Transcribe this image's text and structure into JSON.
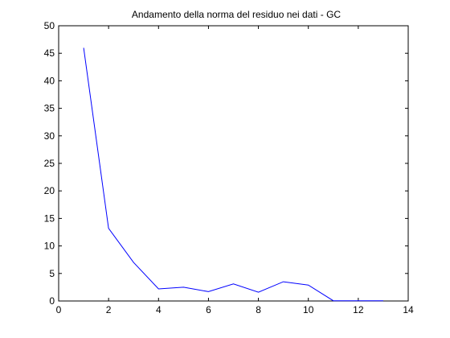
{
  "chart_data": {
    "type": "line",
    "title": "Andamento della norma del residuo nei dati - GC",
    "xlabel": "",
    "ylabel": "",
    "xlim": [
      0,
      14
    ],
    "ylim": [
      0,
      50
    ],
    "xticks": [
      0,
      2,
      4,
      6,
      8,
      10,
      12,
      14
    ],
    "yticks": [
      0,
      5,
      10,
      15,
      20,
      25,
      30,
      35,
      40,
      45,
      50
    ],
    "grid": false,
    "legend": "none",
    "series": [
      {
        "color": "#0000ff",
        "x": [
          1,
          2,
          3,
          4,
          5,
          6,
          7,
          8,
          9,
          10,
          11,
          12,
          13
        ],
        "y": [
          46.0,
          13.2,
          7.0,
          2.2,
          2.5,
          1.7,
          3.1,
          1.6,
          3.5,
          2.9,
          0.05,
          0.05,
          0.05
        ]
      }
    ]
  }
}
